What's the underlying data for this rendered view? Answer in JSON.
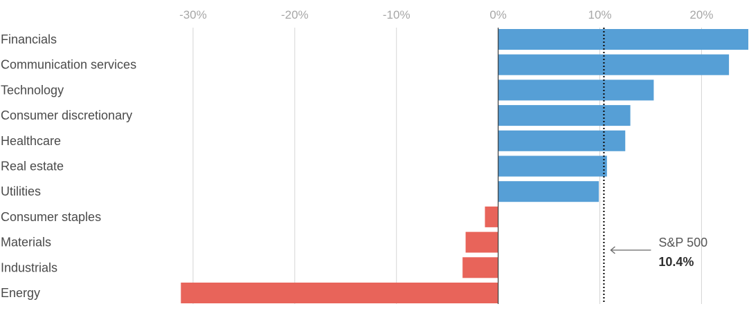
{
  "chart_data": {
    "type": "bar",
    "orientation": "horizontal",
    "categories": [
      "Financials",
      "Communication services",
      "Technology",
      "Consumer discretionary",
      "Healthcare",
      "Real estate",
      "Utilities",
      "Consumer staples",
      "Materials",
      "Industrials",
      "Energy"
    ],
    "values": [
      24.6,
      22.7,
      15.3,
      13.0,
      12.5,
      10.7,
      9.9,
      -1.3,
      -3.2,
      -3.5,
      -31.2
    ],
    "xlim": [
      -33.5,
      24.6
    ],
    "x_ticks": [
      -30,
      -20,
      -10,
      0,
      10,
      20
    ],
    "x_tick_labels": [
      "-30%",
      "-20%",
      "-10%",
      "0%",
      "10%",
      "20%"
    ],
    "grid": true,
    "colors": {
      "positive": "#569fd6",
      "negative": "#e8645a",
      "grid": "#d4d4d4",
      "zero_line": "#444444",
      "reference_line": "#111111"
    },
    "reference": {
      "label": "S&P 500",
      "value_label": "10.4%",
      "value": 10.4
    }
  }
}
